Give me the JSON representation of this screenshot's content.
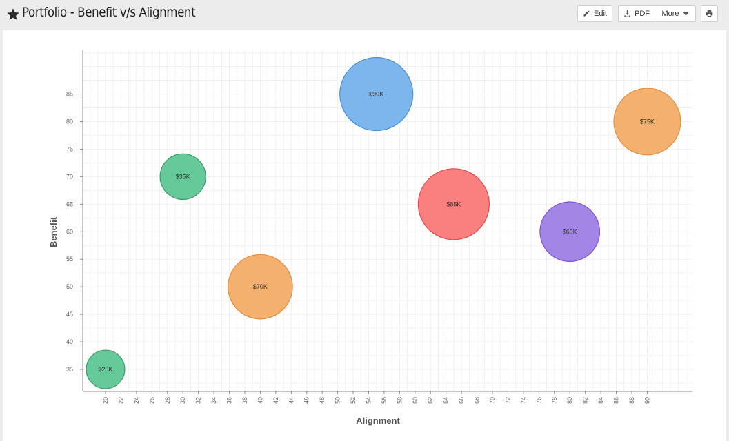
{
  "header": {
    "title": "Portfolio - Benefit v/s Alignment",
    "edit_label": "Edit",
    "pdf_label": "PDF",
    "more_label": "More"
  },
  "icons": {
    "favorite": "star-icon",
    "edit": "pencil-icon",
    "pdf": "download-icon",
    "more": "caret-down-icon",
    "print": "printer-icon"
  },
  "chart_data": {
    "type": "scatter",
    "subtype": "bubble",
    "xlabel": "Alignment",
    "ylabel": "Benefit",
    "xlim": [
      17,
      99
    ],
    "ylim": [
      31,
      93
    ],
    "x_ticks": [
      20,
      22,
      24,
      26,
      28,
      30,
      32,
      34,
      36,
      38,
      40,
      42,
      44,
      46,
      48,
      50,
      52,
      54,
      56,
      58,
      60,
      62,
      64,
      66,
      68,
      70,
      72,
      74,
      76,
      78,
      80,
      82,
      84,
      86,
      88,
      90
    ],
    "y_ticks": [
      35,
      40,
      45,
      50,
      55,
      60,
      65,
      70,
      75,
      80,
      85
    ],
    "grid": true,
    "points": [
      {
        "x": 20,
        "y": 35,
        "value": 25,
        "label": "$25K",
        "fill": "#66c99a",
        "stroke": "#3f9a6a"
      },
      {
        "x": 30,
        "y": 70,
        "value": 35,
        "label": "$35K",
        "fill": "#66c99a",
        "stroke": "#3f9a6a"
      },
      {
        "x": 40,
        "y": 50,
        "value": 70,
        "label": "$70K",
        "fill": "#f3b06e",
        "stroke": "#e0903f"
      },
      {
        "x": 55,
        "y": 85,
        "value": 90,
        "label": "$90K",
        "fill": "#7db6ec",
        "stroke": "#4a90d6"
      },
      {
        "x": 65,
        "y": 65,
        "value": 85,
        "label": "$85K",
        "fill": "#fa8080",
        "stroke": "#e04a4a"
      },
      {
        "x": 80,
        "y": 60,
        "value": 60,
        "label": "$60K",
        "fill": "#a385e6",
        "stroke": "#7b55d4"
      },
      {
        "x": 90,
        "y": 80,
        "value": 75,
        "label": "$75K",
        "fill": "#f3b06e",
        "stroke": "#e0903f"
      }
    ]
  }
}
